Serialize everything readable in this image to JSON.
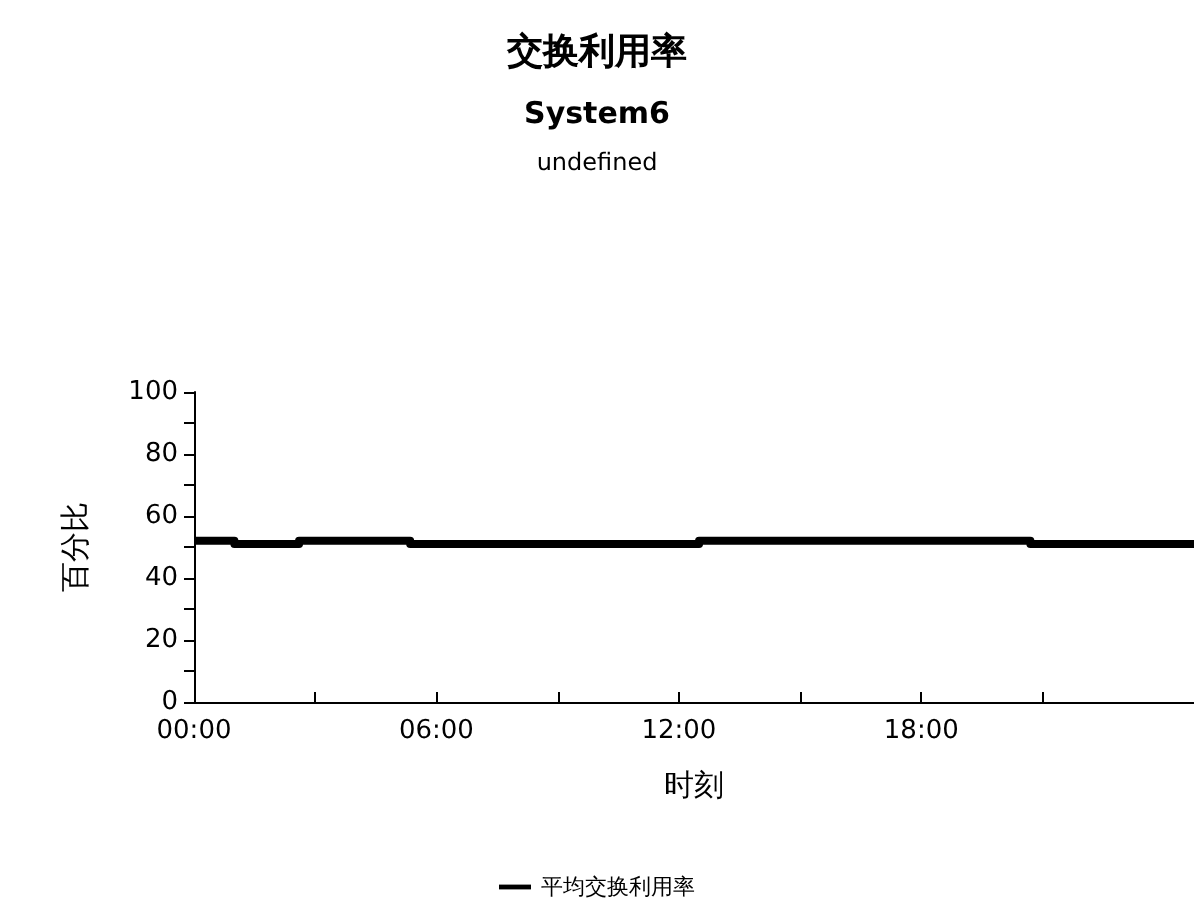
{
  "chart_data": {
    "type": "step",
    "title": "交换利用率",
    "subtitle": "System6",
    "annotations": [
      "undefined"
    ],
    "xlabel": "时刻",
    "ylabel": "百分比",
    "x": [
      0,
      1,
      2.6,
      5.35,
      12.5,
      20.7,
      24.75
    ],
    "series": [
      {
        "name": "平均交换利用率",
        "color": "#000000",
        "values": [
          52,
          51,
          52,
          51,
          52,
          51,
          51
        ]
      }
    ],
    "xlim": [
      0,
      24.75
    ],
    "xticks": [
      {
        "value": 0,
        "label": "00:00"
      },
      {
        "value": 3,
        "label": null
      },
      {
        "value": 6,
        "label": "06:00"
      },
      {
        "value": 9,
        "label": null
      },
      {
        "value": 12,
        "label": "12:00"
      },
      {
        "value": 15,
        "label": null
      },
      {
        "value": 18,
        "label": "18:00"
      },
      {
        "value": 21,
        "label": null
      }
    ],
    "ylim": [
      0,
      100
    ],
    "yticks": [
      0,
      {
        "value": 10,
        "label": null
      },
      20,
      {
        "value": 30,
        "label": null
      },
      40,
      {
        "value": 50,
        "label": null
      },
      60,
      {
        "value": 70,
        "label": null
      },
      80,
      {
        "value": 90,
        "label": null
      },
      100
    ],
    "grid": false,
    "legend": "bottom",
    "marker": "none",
    "line_style": "solid"
  }
}
